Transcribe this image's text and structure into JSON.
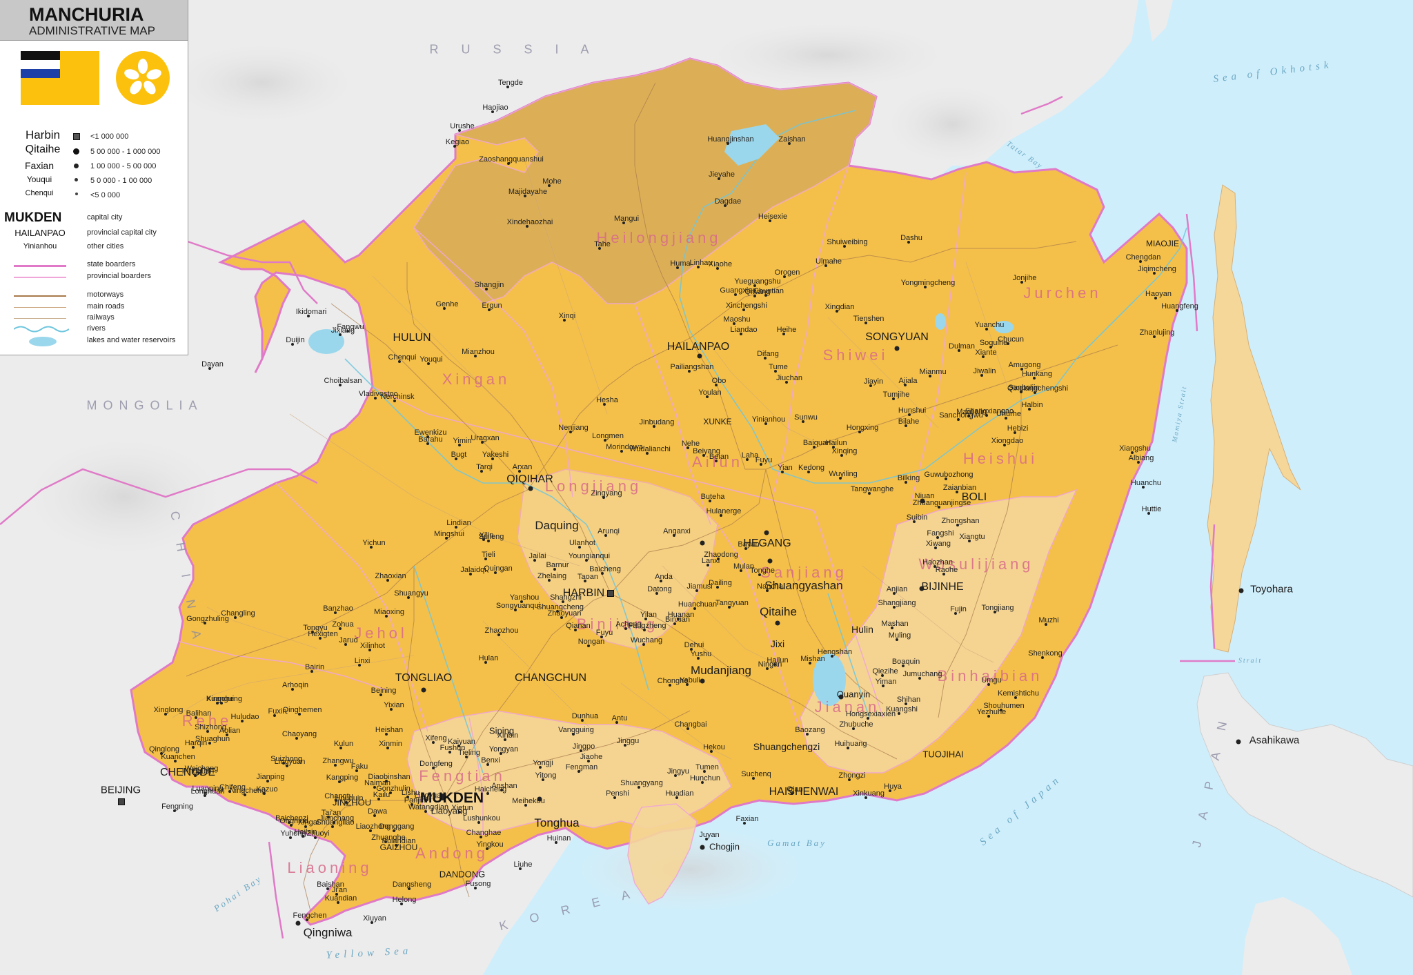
{
  "legend": {
    "title": "MANCHURIA",
    "subtitle": "ADMINISTRATIVE MAP",
    "population": [
      {
        "example": "Harbin",
        "range": "<1 000 000"
      },
      {
        "example": "Qitaihe",
        "range": "5 00 000 - 1 000 000"
      },
      {
        "example": "Faxian",
        "range": "1 00 000 - 5 00 000"
      },
      {
        "example": "Youqui",
        "range": "5 0 000 - 1 00 000"
      },
      {
        "example": "Chenqui",
        "range": "<5 0 000"
      }
    ],
    "city_types": [
      {
        "example": "MUKDEN",
        "label": "capital city"
      },
      {
        "example": "HAILANPAO",
        "label": "provincial capital city"
      },
      {
        "example": "Yinianhou",
        "label": "other cities"
      }
    ],
    "lines": [
      {
        "label": "state boarders",
        "color": "#e07ac8"
      },
      {
        "label": "provincial boarders",
        "color": "#f0a6d8"
      },
      {
        "label": "motorways",
        "color": "#a8794a"
      },
      {
        "label": "main roads",
        "color": "#c9a27a"
      },
      {
        "label": "railways",
        "color": "#c7ad8d"
      },
      {
        "label": "rivers",
        "color": "#6fc6de"
      },
      {
        "label": "lakes and water reservoirs",
        "color": "#9ad7ec"
      }
    ],
    "flag_colors": {
      "field": "#fcc10c",
      "stripes": [
        "#111111",
        "#ffffff",
        "#1c3fa8",
        "#d7262b"
      ]
    }
  },
  "colors": {
    "sea": "#cfeefb",
    "land_foreign": "#ececec",
    "manchuria": "#f4c04a",
    "heilongjiang": "#d8ad5a",
    "pale_province": "#f6d79a",
    "state_border": "#e07ac8"
  },
  "countries": [
    "R U S S I A",
    "MONGOLIA",
    "C H I N A",
    "K O R E A",
    "J A P A N"
  ],
  "seas": [
    "Sea of Okhotsk",
    "Sea of Japan",
    "Yellow Sea",
    "Gamat Bay",
    "Pohai Bay",
    "Tatar Bay",
    "Mamiya Strait",
    "Strait"
  ],
  "provinces": [
    "Heilongjiang",
    "Xingan",
    "Shiwei",
    "Jurchen",
    "Heishui",
    "Ailun",
    "Longjiang",
    "Sanjiang",
    "Wosulijiang",
    "Binjiang",
    "Binhaibian",
    "Jianan",
    "Rehe",
    "Fengtian",
    "Liaoning",
    "Andong",
    "Jehol"
  ],
  "cities": {
    "capital": [
      "MUKDEN"
    ],
    "provincial": [
      "HULUN",
      "HAILANPAO",
      "SONGYUAN",
      "QIQIHAR",
      "HARBIN",
      "HEGANG",
      "BOLI",
      "BIJINHE",
      "TONGLIAO",
      "CHANGCHUN",
      "CHENGDE",
      "HAISHENWAI",
      "DANDONG",
      "JINZHOU",
      "GAIZHOU",
      "XUNKE",
      "MIAOJIE",
      "TUOJIHAI"
    ],
    "large": [
      "Daquing",
      "Shuangyashan",
      "Mudanjiang",
      "Qitaihe",
      "Tonghua",
      "Qingniwa",
      "Toyohara",
      "Asahikawa",
      "Jixi",
      "Shuangchengzi",
      "Hulin",
      "Quanyin",
      "Siping",
      "Liaoyang",
      "Chogjin",
      "BEIJING"
    ],
    "other": [
      "Tengde",
      "Haojiao",
      "Urushe",
      "Kegiao",
      "Huangjinshan",
      "Zaishan",
      "Zaoshangquanshui",
      "Jieyahe",
      "Mohe",
      "Majidayahe",
      "Dagdae",
      "Heisexie",
      "Xindehaozhai",
      "Mangui",
      "Tahe",
      "Linhau",
      "Huma",
      "Xiaohe",
      "Shangjin",
      "Genhe",
      "Ergun",
      "Xinqi",
      "Orogen",
      "Chuntian",
      "Qiwang",
      "Ulmahe",
      "Yueguangshu",
      "Guangxian",
      "Xinchengshi",
      "Maoshu",
      "Liandao",
      "Pailiangshan",
      "Obo",
      "Heihe",
      "Difang",
      "Tume",
      "Jiuchan",
      "Youlan",
      "Hesha",
      "Jinbudang",
      "Yinianhou",
      "Sunwu",
      "Nenjiang",
      "Longmen",
      "Morindawa",
      "Nehe",
      "Wudalianchi",
      "Beiyang",
      "Beian",
      "Laha",
      "Fuyu",
      "Yian",
      "Kedong",
      "Baiquan",
      "Hailun",
      "Wuyiling",
      "Hongxing",
      "Xinqing",
      "Tangwanghe",
      "Jiayin",
      "Ajiala",
      "Mianmu",
      "Tumjihe",
      "Hunshui",
      "Bilahe",
      "Dulman",
      "Soquihe",
      "Xiante",
      "Chucun",
      "Amugong",
      "Jiwalin",
      "Hunkang",
      "Qinglangchengshi",
      "Halbin",
      "Hebizi",
      "Xiongdao",
      "Uhurhe",
      "Shangxiangao",
      "Maojiajin",
      "Sanchongwu",
      "Sanboljin",
      "Xiangshu",
      "Albiang",
      "Huanchu",
      "Huttie",
      "Shuiweibing",
      "Dashu",
      "Yongmingcheng",
      "Jonjihe",
      "Chengdan",
      "Jiqimcheng",
      "Haoyan",
      "Huangfeng",
      "Zhanlujing",
      "Yuanchu",
      "Tienshen",
      "Xingdian",
      "Fangwu",
      "Duijin",
      "Ikidomari",
      "Dayan",
      "Jixiang",
      "Chenqui",
      "Youqui",
      "Mianzhou",
      "Choibalsan",
      "Nerchinsk",
      "Vladivostoc",
      "Ewenkizu",
      "Yakeshi",
      "Uragxan",
      "Barahu",
      "Yimin",
      "Bugt",
      "Tarqi",
      "Arxan",
      "Zingyang",
      "Arunqi",
      "Buteha",
      "Hulanerge",
      "Anganxi",
      "Lindian",
      "Mingshui",
      "Suileng",
      "Yichun",
      "Xilin",
      "Tieli",
      "Quingan",
      "Jalaidqi",
      "Ulanhot",
      "Youngianqui",
      "Jailai",
      "Barnur",
      "Zhelaing",
      "Taoan",
      "Baicheng",
      "Anda",
      "Datong",
      "Lanxi",
      "Zhaodong",
      "Bayan",
      "Mulan",
      "Tonghe",
      "Nancha",
      "Dailing",
      "Jiamusi",
      "Huanchuan",
      "Huanan",
      "Tangyuan",
      "Yilan",
      "Fangzheng",
      "Binxian",
      "Acheng",
      "Yanshou",
      "Shangzhi",
      "Shuangcheng",
      "Songyuanqui",
      "Zhaoyuan",
      "Qianan",
      "Fuyu",
      "Nongan",
      "Dehui",
      "Yushu",
      "Wuchang",
      "Chonghe",
      "Yabuli",
      "Hailun",
      "Ningan",
      "Mishan",
      "Hengshan",
      "Mashan",
      "Muling",
      "Boaquin",
      "Qiezihe",
      "Yiman",
      "Jumuchang",
      "Shangjiang",
      "Anjian",
      "Raohe",
      "Haozhan",
      "Xiwang",
      "Fangshi",
      "Zhongshan",
      "Xiangtu",
      "Zhuanguanjingse",
      "Niuan",
      "Zaianbian",
      "Guwubozhong",
      "Bilking",
      "Suibin",
      "Fujin",
      "Tongjiang",
      "Muzhi",
      "Shenkong",
      "Umgu",
      "Kemishtichu",
      "Shouhumen",
      "Yezhuhe",
      "Shihan",
      "Kuangshi",
      "Hongsexiaxien",
      "Zhubuche",
      "Huihuang",
      "Baozang",
      "Zhongzi",
      "Huya",
      "Xinkuang",
      "Suchenq",
      "Qian",
      "Faxian",
      "Juyan",
      "Hunchun",
      "Tumen",
      "Jingyu",
      "Hekou",
      "Changbai",
      "Jinggu",
      "Antu",
      "Vangguing",
      "Dunhua",
      "Jingpo",
      "Jiaohe",
      "Fengman",
      "Yongji",
      "Yitong",
      "Shuangyang",
      "Penshi",
      "Huadian",
      "Huinan",
      "Meihekou",
      "Liuhe",
      "Fusong",
      "Dangsheng",
      "Helong",
      "Baishan",
      "Ji'an",
      "Kuandian",
      "Fengchen",
      "Xiuyan",
      "Donggang",
      "Zhuanghe",
      "Pulandian",
      "Watangdian",
      "Xietun",
      "Lushunkou",
      "Changhae",
      "Yingkou",
      "Haicheng",
      "Anshan",
      "Benxi",
      "Yongyan",
      "Xinbin",
      "Fushun",
      "Tieling",
      "Kaiyuan",
      "Xifeng",
      "Dongfeng",
      "Liaoyuan",
      "Lishu",
      "Gonzhulin",
      "Diaobinshan",
      "Faku",
      "Kangping",
      "Changtu",
      "Shuangliao",
      "Houquin",
      "Kailu",
      "Naiman",
      "Kulun",
      "Zhangwu",
      "Xinmin",
      "Heishan",
      "Beining",
      "Yixian",
      "Fuxin",
      "Qinghemen",
      "Chaoyang",
      "Lingyuan",
      "Kazuo",
      "Jianping",
      "Ningcheng",
      "Chifeng",
      "Aolian",
      "Harqin",
      "Balihan",
      "Weichang",
      "Fengning",
      "Longhuan",
      "Luanping",
      "Shuaghun",
      "Pingquan",
      "Kuanchen",
      "Qinglong",
      "Xinglong",
      "Kuangui",
      "Xingcheng",
      "Huludao",
      "Suizhong",
      "Shizhong",
      "Jianchang",
      "Xingai",
      "Dawa",
      "Panjin",
      "Tai'an",
      "Liaozhong",
      "Yuhong",
      "Zhuoyi",
      "Ongniud",
      "Hailsin",
      "Baichenzi",
      "Arhoqin",
      "Bairin",
      "Linxi",
      "Hexigten",
      "Xilinhot",
      "Jarud",
      "Zohua",
      "Tongyu",
      "Banzhao",
      "Changling",
      "Gongzhuling",
      "Shuangyu",
      "Zhaoxian",
      "Miaoxing",
      "Zhaozhou",
      "Hulan"
    ]
  }
}
